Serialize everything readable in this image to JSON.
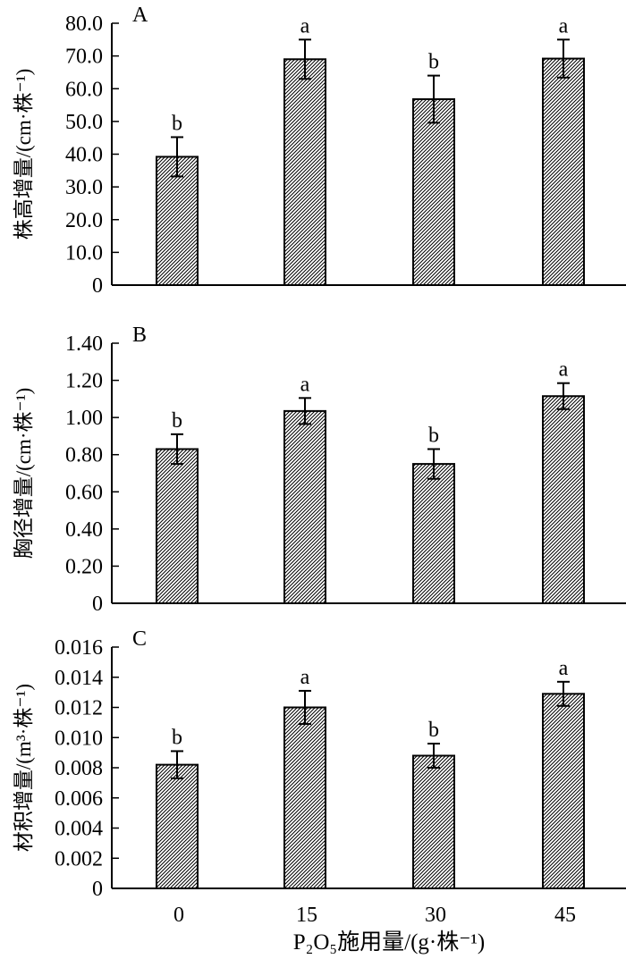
{
  "chart_data": [
    {
      "type": "bar",
      "panel_label": "A",
      "ylabel": "株高增量/(cm·株⁻¹)",
      "ylim": [
        0,
        80
      ],
      "yticks": [
        "0",
        "10.0",
        "20.0",
        "30.0",
        "40.0",
        "50.0",
        "60.0",
        "70.0",
        "80.0"
      ],
      "categories": [
        "0",
        "15",
        "30",
        "45"
      ],
      "values": [
        39.2,
        69.0,
        56.8,
        69.2
      ],
      "errors": [
        6.0,
        6.0,
        7.2,
        5.8
      ],
      "letters": [
        "b",
        "a",
        "b",
        "a"
      ]
    },
    {
      "type": "bar",
      "panel_label": "B",
      "ylabel": "胸径增量/(cm·株⁻¹)",
      "ylim": [
        0,
        1.4
      ],
      "yticks": [
        "0",
        "0.20",
        "0.40",
        "0.60",
        "0.80",
        "1.00",
        "1.20",
        "1.40"
      ],
      "categories": [
        "0",
        "15",
        "30",
        "45"
      ],
      "values": [
        0.83,
        1.035,
        0.75,
        1.115
      ],
      "errors": [
        0.08,
        0.07,
        0.08,
        0.07
      ],
      "letters": [
        "b",
        "a",
        "b",
        "a"
      ]
    },
    {
      "type": "bar",
      "panel_label": "C",
      "ylabel": "材积增量/(m³·株⁻¹)",
      "ylim": [
        0,
        0.016
      ],
      "yticks": [
        "0",
        "0.002",
        "0.004",
        "0.006",
        "0.008",
        "0.010",
        "0.012",
        "0.014",
        "0.016"
      ],
      "categories": [
        "0",
        "15",
        "30",
        "45"
      ],
      "values": [
        0.0082,
        0.012,
        0.0088,
        0.0129
      ],
      "errors": [
        0.0009,
        0.0011,
        0.0008,
        0.0008
      ],
      "letters": [
        "b",
        "a",
        "b",
        "a"
      ]
    }
  ],
  "xlabel": "P₂O₅施用量/(g·株⁻¹)",
  "style": {
    "bar_hatch": "#000000",
    "bar_fill": "#ffffff"
  }
}
